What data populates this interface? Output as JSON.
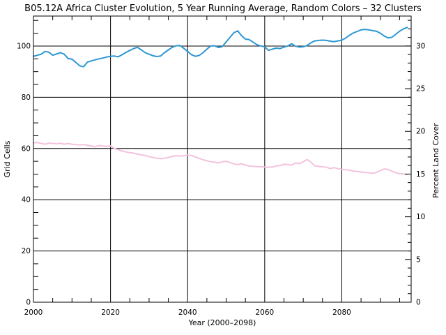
{
  "window": {
    "background": "#ffffff"
  },
  "chart_data": {
    "type": "line",
    "title": "B05.12A Africa Cluster Evolution, 5 Year Running Average, Random Colors – 32 Clusters",
    "xlabel": "Year (2000–2098)",
    "ylabel_left": "Grid Cells",
    "ylabel_right": "Percent Land Cover",
    "grid": true,
    "legend": "none",
    "x_range": [
      2000,
      2098
    ],
    "y_left_range": [
      0,
      111.7
    ],
    "y_right_range": [
      0,
      33.5
    ],
    "x_major_ticks": [
      2000,
      2020,
      2040,
      2060,
      2080
    ],
    "x_tick_labels": [
      "2000",
      "2020",
      "2040",
      "2060",
      "2080"
    ],
    "x_minor_step": 5,
    "y_left_major_ticks": [
      0,
      20,
      40,
      60,
      80,
      100
    ],
    "y_left_tick_labels": [
      "0",
      "20",
      "40",
      "60",
      "80",
      "100"
    ],
    "y_left_minor_step": 5,
    "y_right_major_ticks": [
      0,
      5,
      10,
      15,
      20,
      25,
      30
    ],
    "y_right_tick_labels": [
      "0",
      "5",
      "10",
      "15",
      "20",
      "25",
      "30"
    ],
    "y_right_minor_step": 1,
    "axis_color": "#000000",
    "series": [
      {
        "name": "grid-cells",
        "axis": "left",
        "color": "#2D97D3",
        "points": [
          [
            2000,
            96.0
          ],
          [
            2001,
            96.4
          ],
          [
            2002,
            96.8
          ],
          [
            2003,
            97.9
          ],
          [
            2004,
            97.6
          ],
          [
            2005,
            96.4
          ],
          [
            2006,
            96.9
          ],
          [
            2007,
            97.4
          ],
          [
            2008,
            96.8
          ],
          [
            2009,
            95.1
          ],
          [
            2010,
            94.9
          ],
          [
            2011,
            93.6
          ],
          [
            2012,
            92.3
          ],
          [
            2013,
            91.9
          ],
          [
            2014,
            93.7
          ],
          [
            2015,
            94.2
          ],
          [
            2016,
            94.6
          ],
          [
            2017,
            95.0
          ],
          [
            2018,
            95.3
          ],
          [
            2019,
            95.7
          ],
          [
            2020,
            96.0
          ],
          [
            2021,
            96.1
          ],
          [
            2022,
            95.8
          ],
          [
            2023,
            96.6
          ],
          [
            2024,
            97.5
          ],
          [
            2025,
            98.3
          ],
          [
            2026,
            99.0
          ],
          [
            2027,
            99.5
          ],
          [
            2028,
            98.5
          ],
          [
            2029,
            97.4
          ],
          [
            2030,
            96.8
          ],
          [
            2031,
            96.2
          ],
          [
            2032,
            95.9
          ],
          [
            2033,
            96.1
          ],
          [
            2034,
            97.4
          ],
          [
            2035,
            98.5
          ],
          [
            2036,
            99.5
          ],
          [
            2037,
            100.1
          ],
          [
            2038,
            100.2
          ],
          [
            2039,
            99.1
          ],
          [
            2040,
            97.9
          ],
          [
            2041,
            96.6
          ],
          [
            2042,
            96.0
          ],
          [
            2043,
            96.3
          ],
          [
            2044,
            97.4
          ],
          [
            2045,
            98.8
          ],
          [
            2046,
            100.0
          ],
          [
            2047,
            100.1
          ],
          [
            2048,
            99.4
          ],
          [
            2049,
            99.8
          ],
          [
            2050,
            101.6
          ],
          [
            2051,
            103.4
          ],
          [
            2052,
            105.2
          ],
          [
            2053,
            105.9
          ],
          [
            2054,
            104.0
          ],
          [
            2055,
            102.7
          ],
          [
            2056,
            102.5
          ],
          [
            2057,
            101.5
          ],
          [
            2058,
            100.5
          ],
          [
            2059,
            100.0
          ],
          [
            2060,
            99.7
          ],
          [
            2061,
            98.3
          ],
          [
            2062,
            98.8
          ],
          [
            2063,
            99.2
          ],
          [
            2064,
            99.0
          ],
          [
            2065,
            99.6
          ],
          [
            2066,
            100.0
          ],
          [
            2067,
            100.9
          ],
          [
            2068,
            99.9
          ],
          [
            2069,
            99.6
          ],
          [
            2070,
            99.7
          ],
          [
            2071,
            100.2
          ],
          [
            2072,
            101.3
          ],
          [
            2073,
            102.0
          ],
          [
            2074,
            102.2
          ],
          [
            2075,
            102.3
          ],
          [
            2076,
            102.2
          ],
          [
            2077,
            101.9
          ],
          [
            2078,
            101.7
          ],
          [
            2079,
            102.0
          ],
          [
            2080,
            102.3
          ],
          [
            2081,
            103.1
          ],
          [
            2082,
            104.2
          ],
          [
            2083,
            105.1
          ],
          [
            2084,
            105.7
          ],
          [
            2085,
            106.3
          ],
          [
            2086,
            106.5
          ],
          [
            2087,
            106.3
          ],
          [
            2088,
            106.0
          ],
          [
            2089,
            105.8
          ],
          [
            2090,
            105.0
          ],
          [
            2091,
            103.9
          ],
          [
            2092,
            103.2
          ],
          [
            2093,
            103.4
          ],
          [
            2094,
            104.6
          ],
          [
            2095,
            105.8
          ],
          [
            2096,
            106.7
          ],
          [
            2097,
            107.3
          ]
        ]
      },
      {
        "name": "percent-land-cover",
        "axis": "right",
        "color": "#F2C3DD",
        "points": [
          [
            2000,
            18.65
          ],
          [
            2001,
            18.7
          ],
          [
            2002,
            18.6
          ],
          [
            2003,
            18.5
          ],
          [
            2004,
            18.62
          ],
          [
            2005,
            18.6
          ],
          [
            2006,
            18.55
          ],
          [
            2007,
            18.62
          ],
          [
            2008,
            18.5
          ],
          [
            2009,
            18.58
          ],
          [
            2010,
            18.5
          ],
          [
            2011,
            18.45
          ],
          [
            2012,
            18.42
          ],
          [
            2013,
            18.45
          ],
          [
            2014,
            18.38
          ],
          [
            2015,
            18.3
          ],
          [
            2016,
            18.2
          ],
          [
            2017,
            18.35
          ],
          [
            2018,
            18.28
          ],
          [
            2019,
            18.25
          ],
          [
            2020,
            18.3
          ],
          [
            2021,
            18.0
          ],
          [
            2022,
            17.85
          ],
          [
            2023,
            17.7
          ],
          [
            2024,
            17.6
          ],
          [
            2025,
            17.5
          ],
          [
            2026,
            17.45
          ],
          [
            2027,
            17.32
          ],
          [
            2028,
            17.25
          ],
          [
            2029,
            17.18
          ],
          [
            2030,
            17.05
          ],
          [
            2031,
            16.95
          ],
          [
            2032,
            16.85
          ],
          [
            2033,
            16.8
          ],
          [
            2034,
            16.85
          ],
          [
            2035,
            16.95
          ],
          [
            2036,
            17.08
          ],
          [
            2037,
            17.15
          ],
          [
            2038,
            17.1
          ],
          [
            2039,
            17.15
          ],
          [
            2040,
            17.2
          ],
          [
            2041,
            17.18
          ],
          [
            2042,
            17.0
          ],
          [
            2043,
            16.85
          ],
          [
            2044,
            16.68
          ],
          [
            2045,
            16.55
          ],
          [
            2046,
            16.45
          ],
          [
            2047,
            16.4
          ],
          [
            2048,
            16.3
          ],
          [
            2049,
            16.45
          ],
          [
            2050,
            16.5
          ],
          [
            2051,
            16.35
          ],
          [
            2052,
            16.2
          ],
          [
            2053,
            16.1
          ],
          [
            2054,
            16.2
          ],
          [
            2055,
            16.05
          ],
          [
            2056,
            15.95
          ],
          [
            2057,
            15.9
          ],
          [
            2058,
            15.88
          ],
          [
            2059,
            15.85
          ],
          [
            2060,
            15.83
          ],
          [
            2061,
            15.8
          ],
          [
            2062,
            15.82
          ],
          [
            2063,
            15.95
          ],
          [
            2064,
            16.0
          ],
          [
            2065,
            16.15
          ],
          [
            2066,
            16.1
          ],
          [
            2067,
            16.05
          ],
          [
            2068,
            16.3
          ],
          [
            2069,
            16.2
          ],
          [
            2070,
            16.45
          ],
          [
            2071,
            16.7
          ],
          [
            2072,
            16.4
          ],
          [
            2073,
            15.95
          ],
          [
            2074,
            15.9
          ],
          [
            2075,
            15.85
          ],
          [
            2076,
            15.8
          ],
          [
            2077,
            15.65
          ],
          [
            2078,
            15.75
          ],
          [
            2079,
            15.65
          ],
          [
            2080,
            15.56
          ],
          [
            2081,
            15.5
          ],
          [
            2082,
            15.45
          ],
          [
            2083,
            15.35
          ],
          [
            2084,
            15.3
          ],
          [
            2085,
            15.25
          ],
          [
            2086,
            15.2
          ],
          [
            2087,
            15.15
          ],
          [
            2088,
            15.1
          ],
          [
            2089,
            15.2
          ],
          [
            2090,
            15.4
          ],
          [
            2091,
            15.6
          ],
          [
            2092,
            15.55
          ],
          [
            2093,
            15.35
          ],
          [
            2094,
            15.15
          ],
          [
            2095,
            15.05
          ],
          [
            2096,
            15.0
          ],
          [
            2097,
            14.95
          ]
        ]
      }
    ]
  }
}
